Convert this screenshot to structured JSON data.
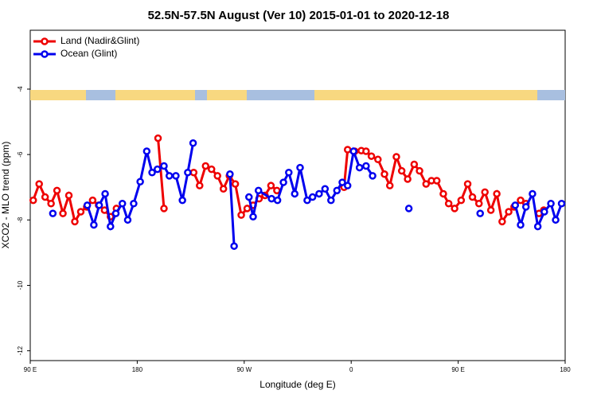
{
  "chart_data": {
    "type": "line",
    "title": "52.5N-57.5N August (Ver 10)   2015-01-01 to 2020-12-18",
    "x_label": "Longitude (deg E)",
    "y_label": "XCO2 - MLO trend (ppm)",
    "xlim": [
      90,
      540
    ],
    "xticks": [
      {
        "value": 90,
        "label": "90 E"
      },
      {
        "value": 180,
        "label": "180"
      },
      {
        "value": 270,
        "label": "90 W"
      },
      {
        "value": 360,
        "label": "0"
      },
      {
        "value": 450,
        "label": "90 E"
      },
      {
        "value": 540,
        "label": "180"
      }
    ],
    "ylim": [
      -12.3,
      -2.2
    ],
    "yticks": [
      -4,
      -6,
      -8,
      -10,
      -12
    ],
    "legend": "top-left",
    "series": [
      {
        "name": "Land (Nadir&Glint)",
        "color": "#ee0000",
        "x": [
          92.5,
          97.5,
          102.5,
          107.5,
          112.5,
          117.5,
          122.5,
          127.5,
          132.5,
          137.5,
          142.5,
          147.5,
          152.5,
          157.5,
          162.5,
          null,
          197.5,
          202.5,
          null,
          227.5,
          232.5,
          237.5,
          242.5,
          247.5,
          252.5,
          257.5,
          262.5,
          267.5,
          272.5,
          277.5,
          282.5,
          287.5,
          292.5,
          297.5,
          null,
          354,
          357,
          363,
          368.5,
          372.5,
          377,
          382.5,
          388,
          392.5,
          398,
          402.5,
          407.5,
          413,
          417.5,
          423,
          427.5,
          432,
          437.5,
          442,
          447,
          452.5,
          458,
          462,
          467.5,
          472.5,
          477.5,
          482.5,
          487,
          492.5,
          497,
          502.5,
          507,
          null,
          518,
          522
        ],
        "values": [
          -7.4,
          -6.9,
          -7.3,
          -7.5,
          -7.1,
          -7.8,
          -7.25,
          -8.05,
          -7.75,
          -7.6,
          -7.4,
          -7.55,
          -7.7,
          -7.9,
          -7.65,
          null,
          -5.5,
          -7.65,
          null,
          -6.55,
          -6.95,
          -6.35,
          -6.45,
          -6.65,
          -7.05,
          -6.65,
          -6.9,
          -7.85,
          -7.65,
          -7.55,
          -7.35,
          -7.25,
          -6.95,
          -7.1,
          null,
          -7.0,
          -5.85,
          -5.9,
          -5.88,
          -5.9,
          -6.05,
          -6.15,
          -6.6,
          -6.95,
          -6.07,
          -6.5,
          -6.75,
          -6.3,
          -6.5,
          -6.9,
          -6.8,
          -6.8,
          -7.2,
          -7.5,
          -7.65,
          -7.4,
          -6.9,
          -7.3,
          -7.5,
          -7.15,
          -7.7,
          -7.2,
          -8.05,
          -7.75,
          -7.6,
          -7.4,
          -7.5,
          null,
          -7.8,
          -7.7
        ]
      },
      {
        "name": "Ocean (Glint)",
        "color": "#0000ee",
        "x": [
          109,
          null,
          138,
          143.5,
          148,
          153,
          157.5,
          162,
          167.5,
          172,
          177,
          182.5,
          188,
          192.5,
          197,
          202.5,
          207,
          212.5,
          218,
          222.5,
          227,
          null,
          258,
          261.5,
          null,
          274,
          277.5,
          282,
          293,
          298,
          303,
          307.5,
          312.5,
          317,
          323,
          327.5,
          333,
          338,
          343,
          348,
          352.5,
          357,
          362,
          367,
          372.5,
          378,
          null,
          408.5,
          null,
          468.5,
          null,
          498,
          502.5,
          507,
          512.5,
          517,
          522.5,
          528,
          532,
          537
        ],
        "values": [
          -7.8,
          null,
          -7.55,
          -8.15,
          -7.55,
          -7.2,
          -8.2,
          -7.8,
          -7.5,
          -8.0,
          -7.5,
          -6.83,
          -5.9,
          -6.55,
          -6.45,
          -6.35,
          -6.65,
          -6.65,
          -7.4,
          -6.55,
          -5.65,
          null,
          -6.6,
          -8.8,
          null,
          -7.3,
          -7.9,
          -7.1,
          -7.35,
          -7.4,
          -6.85,
          -6.55,
          -7.2,
          -6.4,
          -7.4,
          -7.3,
          -7.2,
          -7.05,
          -7.4,
          -7.1,
          -6.85,
          -6.95,
          -5.9,
          -6.4,
          -6.35,
          -6.65,
          null,
          -7.65,
          null,
          -7.8,
          null,
          -7.55,
          -8.15,
          -7.6,
          -7.2,
          -8.2,
          -7.75,
          -7.5,
          -8.0,
          -7.5
        ]
      }
    ]
  }
}
